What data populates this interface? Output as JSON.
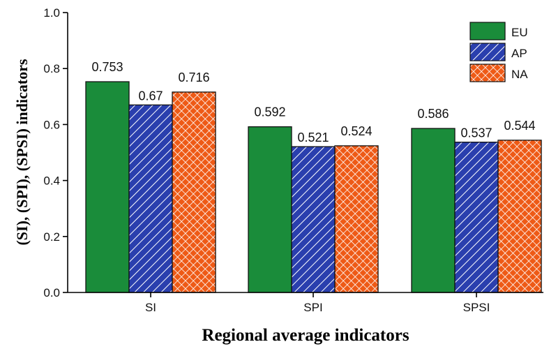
{
  "chart_data": {
    "type": "bar",
    "xlabel": "Regional average indicators",
    "ylabel": "(SI), (SPI), (SPSI) indicators",
    "categories": [
      "SI",
      "SPI",
      "SPSI"
    ],
    "series": [
      {
        "name": "EU",
        "values": [
          0.753,
          0.592,
          0.586
        ],
        "labels": [
          "0.753",
          "0.592",
          "0.586"
        ],
        "color": "#1a8c3a",
        "pattern": "solid"
      },
      {
        "name": "AP",
        "values": [
          0.67,
          0.521,
          0.537
        ],
        "labels": [
          "0.67",
          "0.521",
          "0.537"
        ],
        "color": "#2a3fae",
        "pattern": "diagonal-hatch"
      },
      {
        "name": "NA",
        "values": [
          0.716,
          0.524,
          0.544
        ],
        "labels": [
          "0.716",
          "0.524",
          "0.544"
        ],
        "color": "#ee5a16",
        "pattern": "crosshatch"
      }
    ],
    "ylim": [
      0.0,
      1.0
    ],
    "yticks": [
      "0.0",
      "0.2",
      "0.4",
      "0.6",
      "0.8",
      "1.0"
    ],
    "legend": "top-right",
    "grid": false
  }
}
